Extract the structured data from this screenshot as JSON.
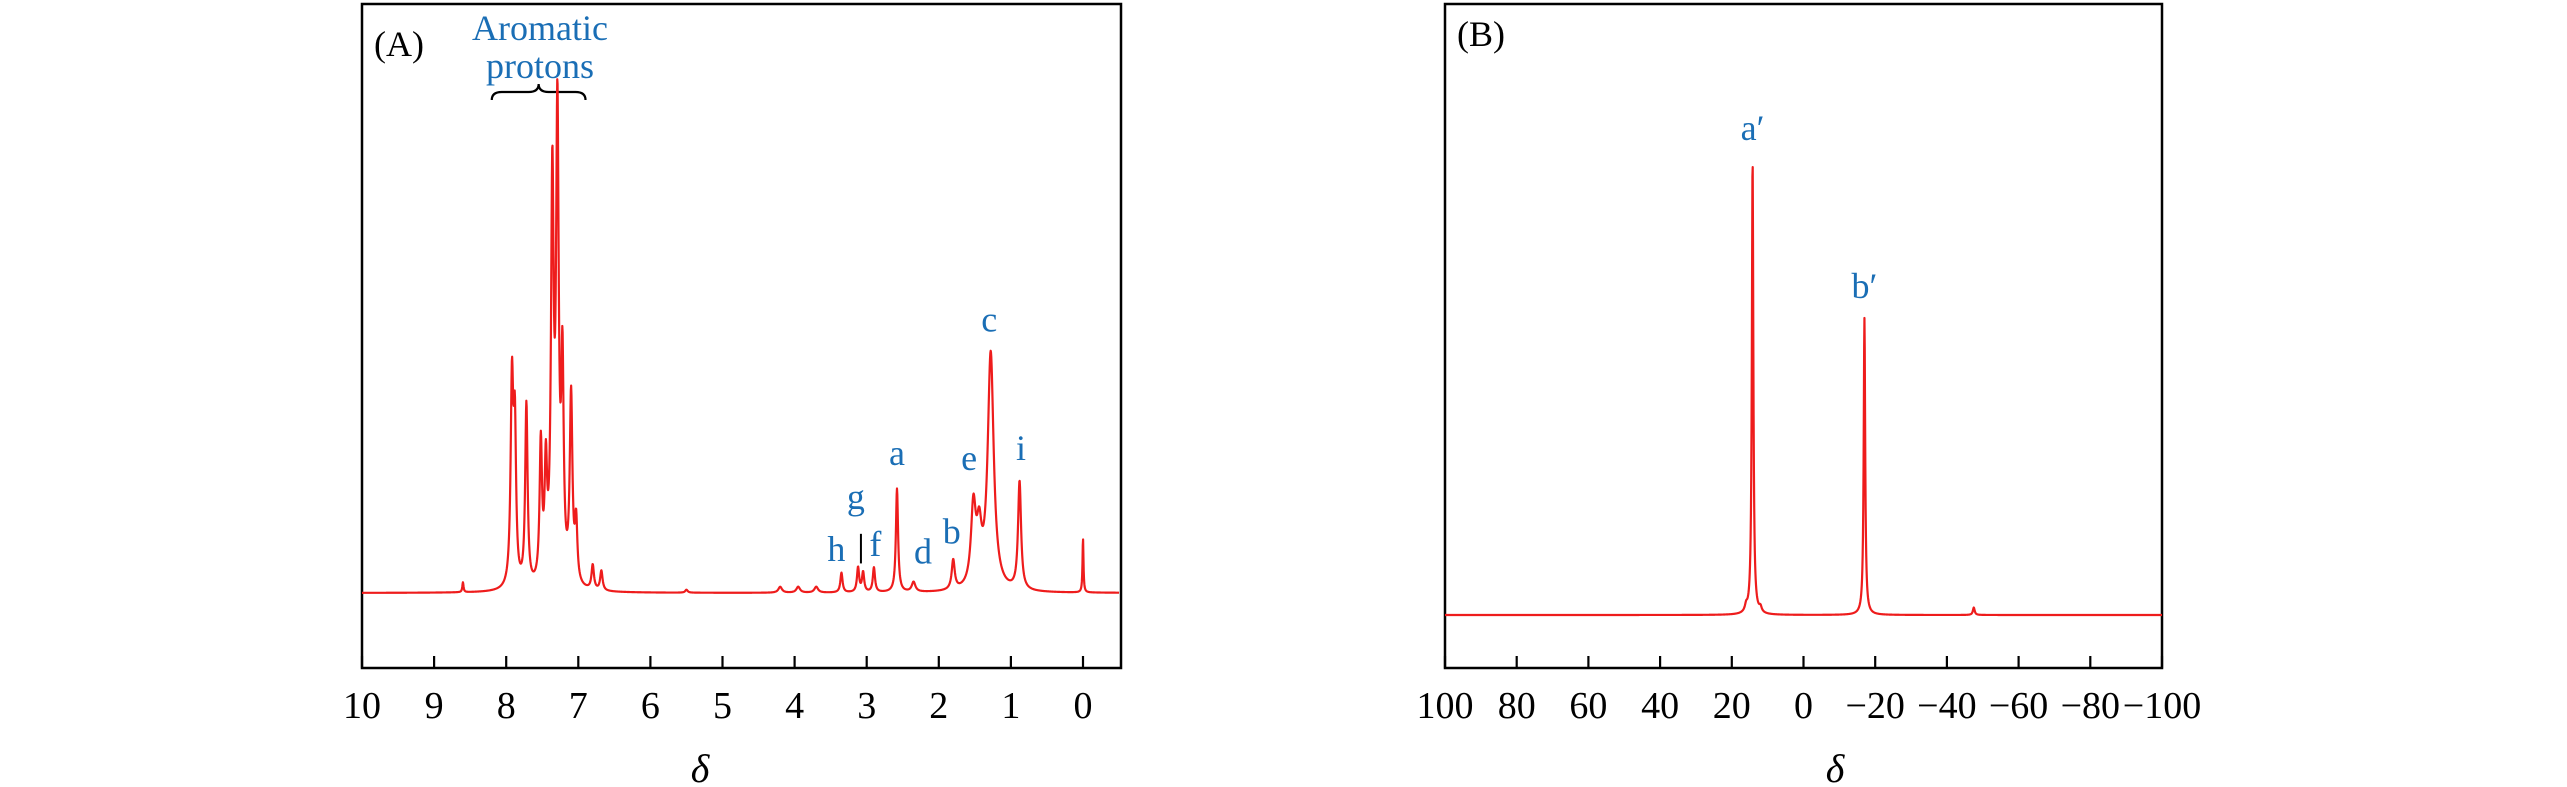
{
  "colors": {
    "spectrum": "#ee1c1c",
    "annotation": "#1a6eb5",
    "axis": "#000000"
  },
  "chart_data": [
    {
      "panel": "(A)",
      "type": "line",
      "xlabel": "δ",
      "ylabel": "",
      "xlim": [
        10,
        -0.5
      ],
      "xticks": [
        10,
        9,
        8,
        7,
        6,
        5,
        4,
        3,
        2,
        1,
        0
      ],
      "tick_labels": [
        "10",
        "9",
        "8",
        "7",
        "6",
        "5",
        "4",
        "3",
        "2",
        "1",
        "0"
      ],
      "grid": false,
      "annotation": {
        "lines": [
          "Aromatic",
          "protons"
        ],
        "range": [
          8.2,
          6.9
        ]
      },
      "peaks": [
        {
          "x": 8.6,
          "y": 0.02,
          "w": 0.01
        },
        {
          "x": 7.92,
          "y": 0.41,
          "w": 0.022
        },
        {
          "x": 7.88,
          "y": 0.3,
          "w": 0.02
        },
        {
          "x": 7.72,
          "y": 0.37,
          "w": 0.02
        },
        {
          "x": 7.52,
          "y": 0.28,
          "w": 0.02
        },
        {
          "x": 7.45,
          "y": 0.22,
          "w": 0.02
        },
        {
          "x": 7.36,
          "y": 0.8,
          "w": 0.022
        },
        {
          "x": 7.29,
          "y": 0.93,
          "w": 0.022
        },
        {
          "x": 7.22,
          "y": 0.42,
          "w": 0.02
        },
        {
          "x": 7.1,
          "y": 0.38,
          "w": 0.022
        },
        {
          "x": 7.03,
          "y": 0.12,
          "w": 0.02
        },
        {
          "x": 6.8,
          "y": 0.05,
          "w": 0.02
        },
        {
          "x": 6.68,
          "y": 0.04,
          "w": 0.02
        },
        {
          "x": 5.5,
          "y": 0.006,
          "w": 0.02
        },
        {
          "x": 4.2,
          "y": 0.012,
          "w": 0.03
        },
        {
          "x": 3.95,
          "y": 0.012,
          "w": 0.03
        },
        {
          "x": 3.7,
          "y": 0.012,
          "w": 0.03
        },
        {
          "x": 3.35,
          "y": 0.04,
          "w": 0.018
        },
        {
          "x": 3.12,
          "y": 0.05,
          "w": 0.018
        },
        {
          "x": 3.05,
          "y": 0.04,
          "w": 0.018
        },
        {
          "x": 2.9,
          "y": 0.05,
          "w": 0.018
        },
        {
          "x": 2.58,
          "y": 0.21,
          "w": 0.018
        },
        {
          "x": 2.35,
          "y": 0.02,
          "w": 0.03
        },
        {
          "x": 1.8,
          "y": 0.06,
          "w": 0.025
        },
        {
          "x": 1.52,
          "y": 0.16,
          "w": 0.04
        },
        {
          "x": 1.44,
          "y": 0.1,
          "w": 0.04
        },
        {
          "x": 1.28,
          "y": 0.48,
          "w": 0.05
        },
        {
          "x": 0.88,
          "y": 0.22,
          "w": 0.025
        },
        {
          "x": 0.0,
          "y": 0.11,
          "w": 0.008
        }
      ],
      "peak_labels": [
        {
          "label": "h",
          "x": 3.42,
          "y": 0.065
        },
        {
          "label": "g",
          "x": 3.15,
          "y": 0.17
        },
        {
          "label": "f",
          "x": 2.88,
          "y": 0.075
        },
        {
          "label": "a",
          "x": 2.58,
          "y": 0.26
        },
        {
          "label": "d",
          "x": 2.22,
          "y": 0.06
        },
        {
          "label": "b",
          "x": 1.82,
          "y": 0.1
        },
        {
          "label": "e",
          "x": 1.58,
          "y": 0.25
        },
        {
          "label": "c",
          "x": 1.3,
          "y": 0.53
        },
        {
          "label": "i",
          "x": 0.86,
          "y": 0.27
        }
      ],
      "marker_lines": [
        {
          "x": 3.08,
          "y1": 0.06,
          "y2": 0.12
        }
      ]
    },
    {
      "panel": "(B)",
      "type": "line",
      "xlabel": "δ",
      "ylabel": "",
      "xlim": [
        100,
        -100
      ],
      "xticks": [
        100,
        80,
        60,
        40,
        20,
        0,
        -20,
        -40,
        -60,
        -80,
        -100
      ],
      "tick_labels": [
        "100",
        "80",
        "60",
        "40",
        "20",
        "0",
        "−20",
        "−40",
        "−60",
        "−80",
        "−100"
      ],
      "grid": false,
      "peaks": [
        {
          "x": 14.2,
          "y": 0.92,
          "w": 0.25
        },
        {
          "x": -17.0,
          "y": 0.6,
          "w": 0.25
        },
        {
          "x": -47.5,
          "y": 0.015,
          "w": 0.3
        },
        {
          "x": 16.0,
          "y": 0.012,
          "w": 0.4
        },
        {
          "x": 12.0,
          "y": 0.01,
          "w": 0.4
        }
      ],
      "peak_labels": [
        {
          "label": "a′",
          "x": 14.2,
          "y": 0.96
        },
        {
          "label": "b′",
          "x": -17.0,
          "y": 0.64
        }
      ]
    }
  ]
}
